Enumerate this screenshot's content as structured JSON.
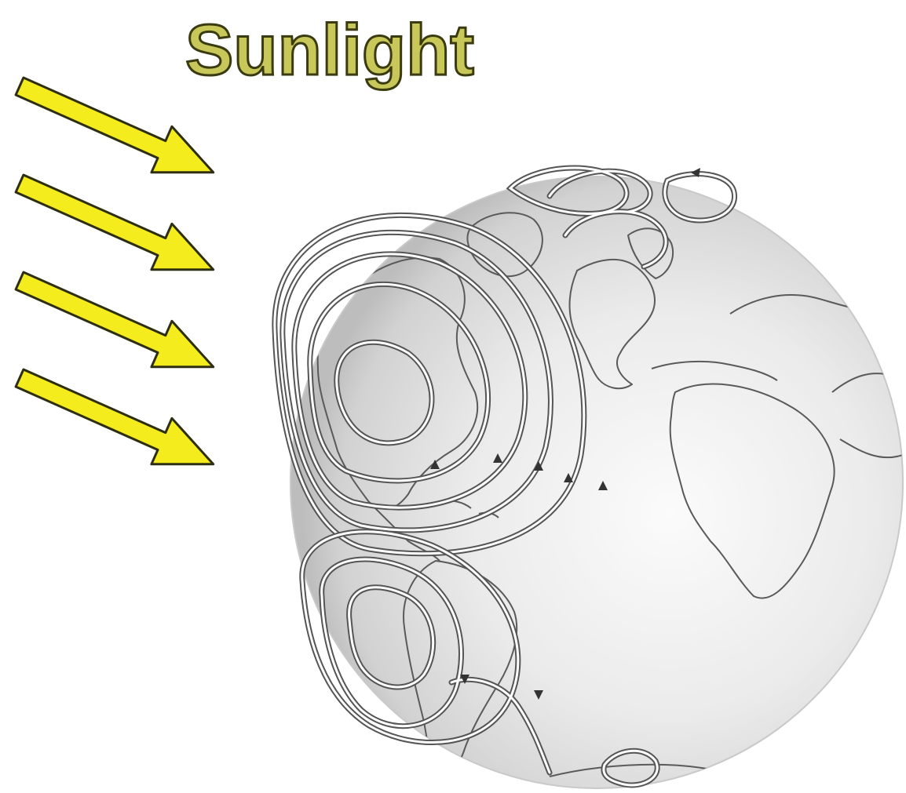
{
  "title": "Sunlight",
  "colors": {
    "background": "#ffffff",
    "title_fill": "#c8c85a",
    "title_outline": "#3b3b12",
    "arrow_fill": "#f4ec1c",
    "arrow_outline": "#2e2e12",
    "globe_light": "#fafafa",
    "globe_mid": "#e4e4e4",
    "globe_edge": "#bdbdbd",
    "coastline": "#5a5a5a",
    "current_line_outer": "#555555",
    "current_line_inner": "#ffffff"
  },
  "elements": {
    "sunlight_arrow_count": 4,
    "globe": "earth-globe",
    "current_systems": [
      "north-atlantic-gyre",
      "south-atlantic-gyre"
    ]
  }
}
